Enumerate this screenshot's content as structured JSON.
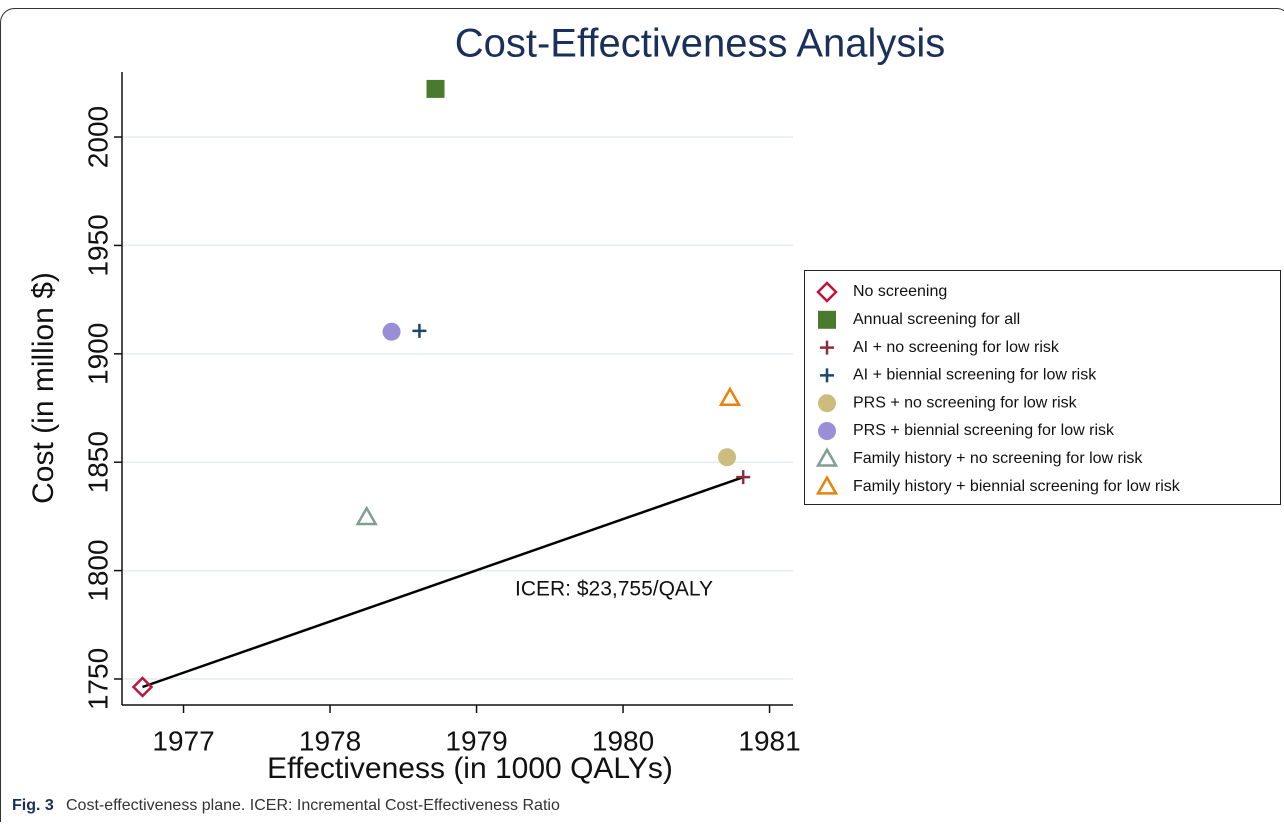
{
  "chart_data": {
    "type": "scatter",
    "title": "Cost-Effectiveness Analysis",
    "xlabel": "Effectiveness (in 1000 QALYs)",
    "ylabel": "Cost (in million $)",
    "xlim": [
      1976.58,
      1981.16
    ],
    "xticks": [
      1977,
      1978,
      1979,
      1980,
      1981
    ],
    "ylim": [
      1738,
      2030
    ],
    "yticks": [
      1750,
      1800,
      1850,
      1900,
      1950,
      2000
    ],
    "grid": true,
    "legend": "right",
    "annotation": "ICER: $23,755/QALY",
    "series": [
      {
        "name": "No screening",
        "color": "#c0143c",
        "marker": "diamond-open",
        "x": [
          1976.72
        ],
        "values": [
          1746.3
        ]
      },
      {
        "name": "Annual screening for all",
        "color": "#4a7a2e",
        "marker": "square",
        "x": [
          1978.72
        ],
        "values": [
          2022.2
        ]
      },
      {
        "name": "AI + no screening for low risk",
        "color": "#8b2f3e",
        "marker": "plus",
        "x": [
          1980.82
        ],
        "values": [
          1843.1
        ]
      },
      {
        "name": "AI + biennial screening for low risk",
        "color": "#1a476f",
        "marker": "plus",
        "x": [
          1978.61
        ],
        "values": [
          1910.6
        ]
      },
      {
        "name": "PRS + no screening for low risk",
        "color": "#cbbd7e",
        "marker": "circle",
        "x": [
          1980.71
        ],
        "values": [
          1852.3
        ]
      },
      {
        "name": "PRS + biennial screening for low risk",
        "color": "#9a8fd6",
        "marker": "circle",
        "x": [
          1978.42
        ],
        "values": [
          1910.2
        ]
      },
      {
        "name": "Family history + no screening for low risk",
        "color": "#7f9f91",
        "marker": "triangle-open",
        "x": [
          1978.25
        ],
        "values": [
          1824.6
        ]
      },
      {
        "name": "Family history + biennial screening for low risk",
        "color": "#e8820c",
        "marker": "triangle-open",
        "x": [
          1980.73
        ],
        "values": [
          1879.6
        ]
      }
    ]
  },
  "caption": {
    "label": "Fig. 3",
    "text": "Cost-effectiveness plane. ICER: Incremental Cost-Effectiveness Ratio"
  }
}
